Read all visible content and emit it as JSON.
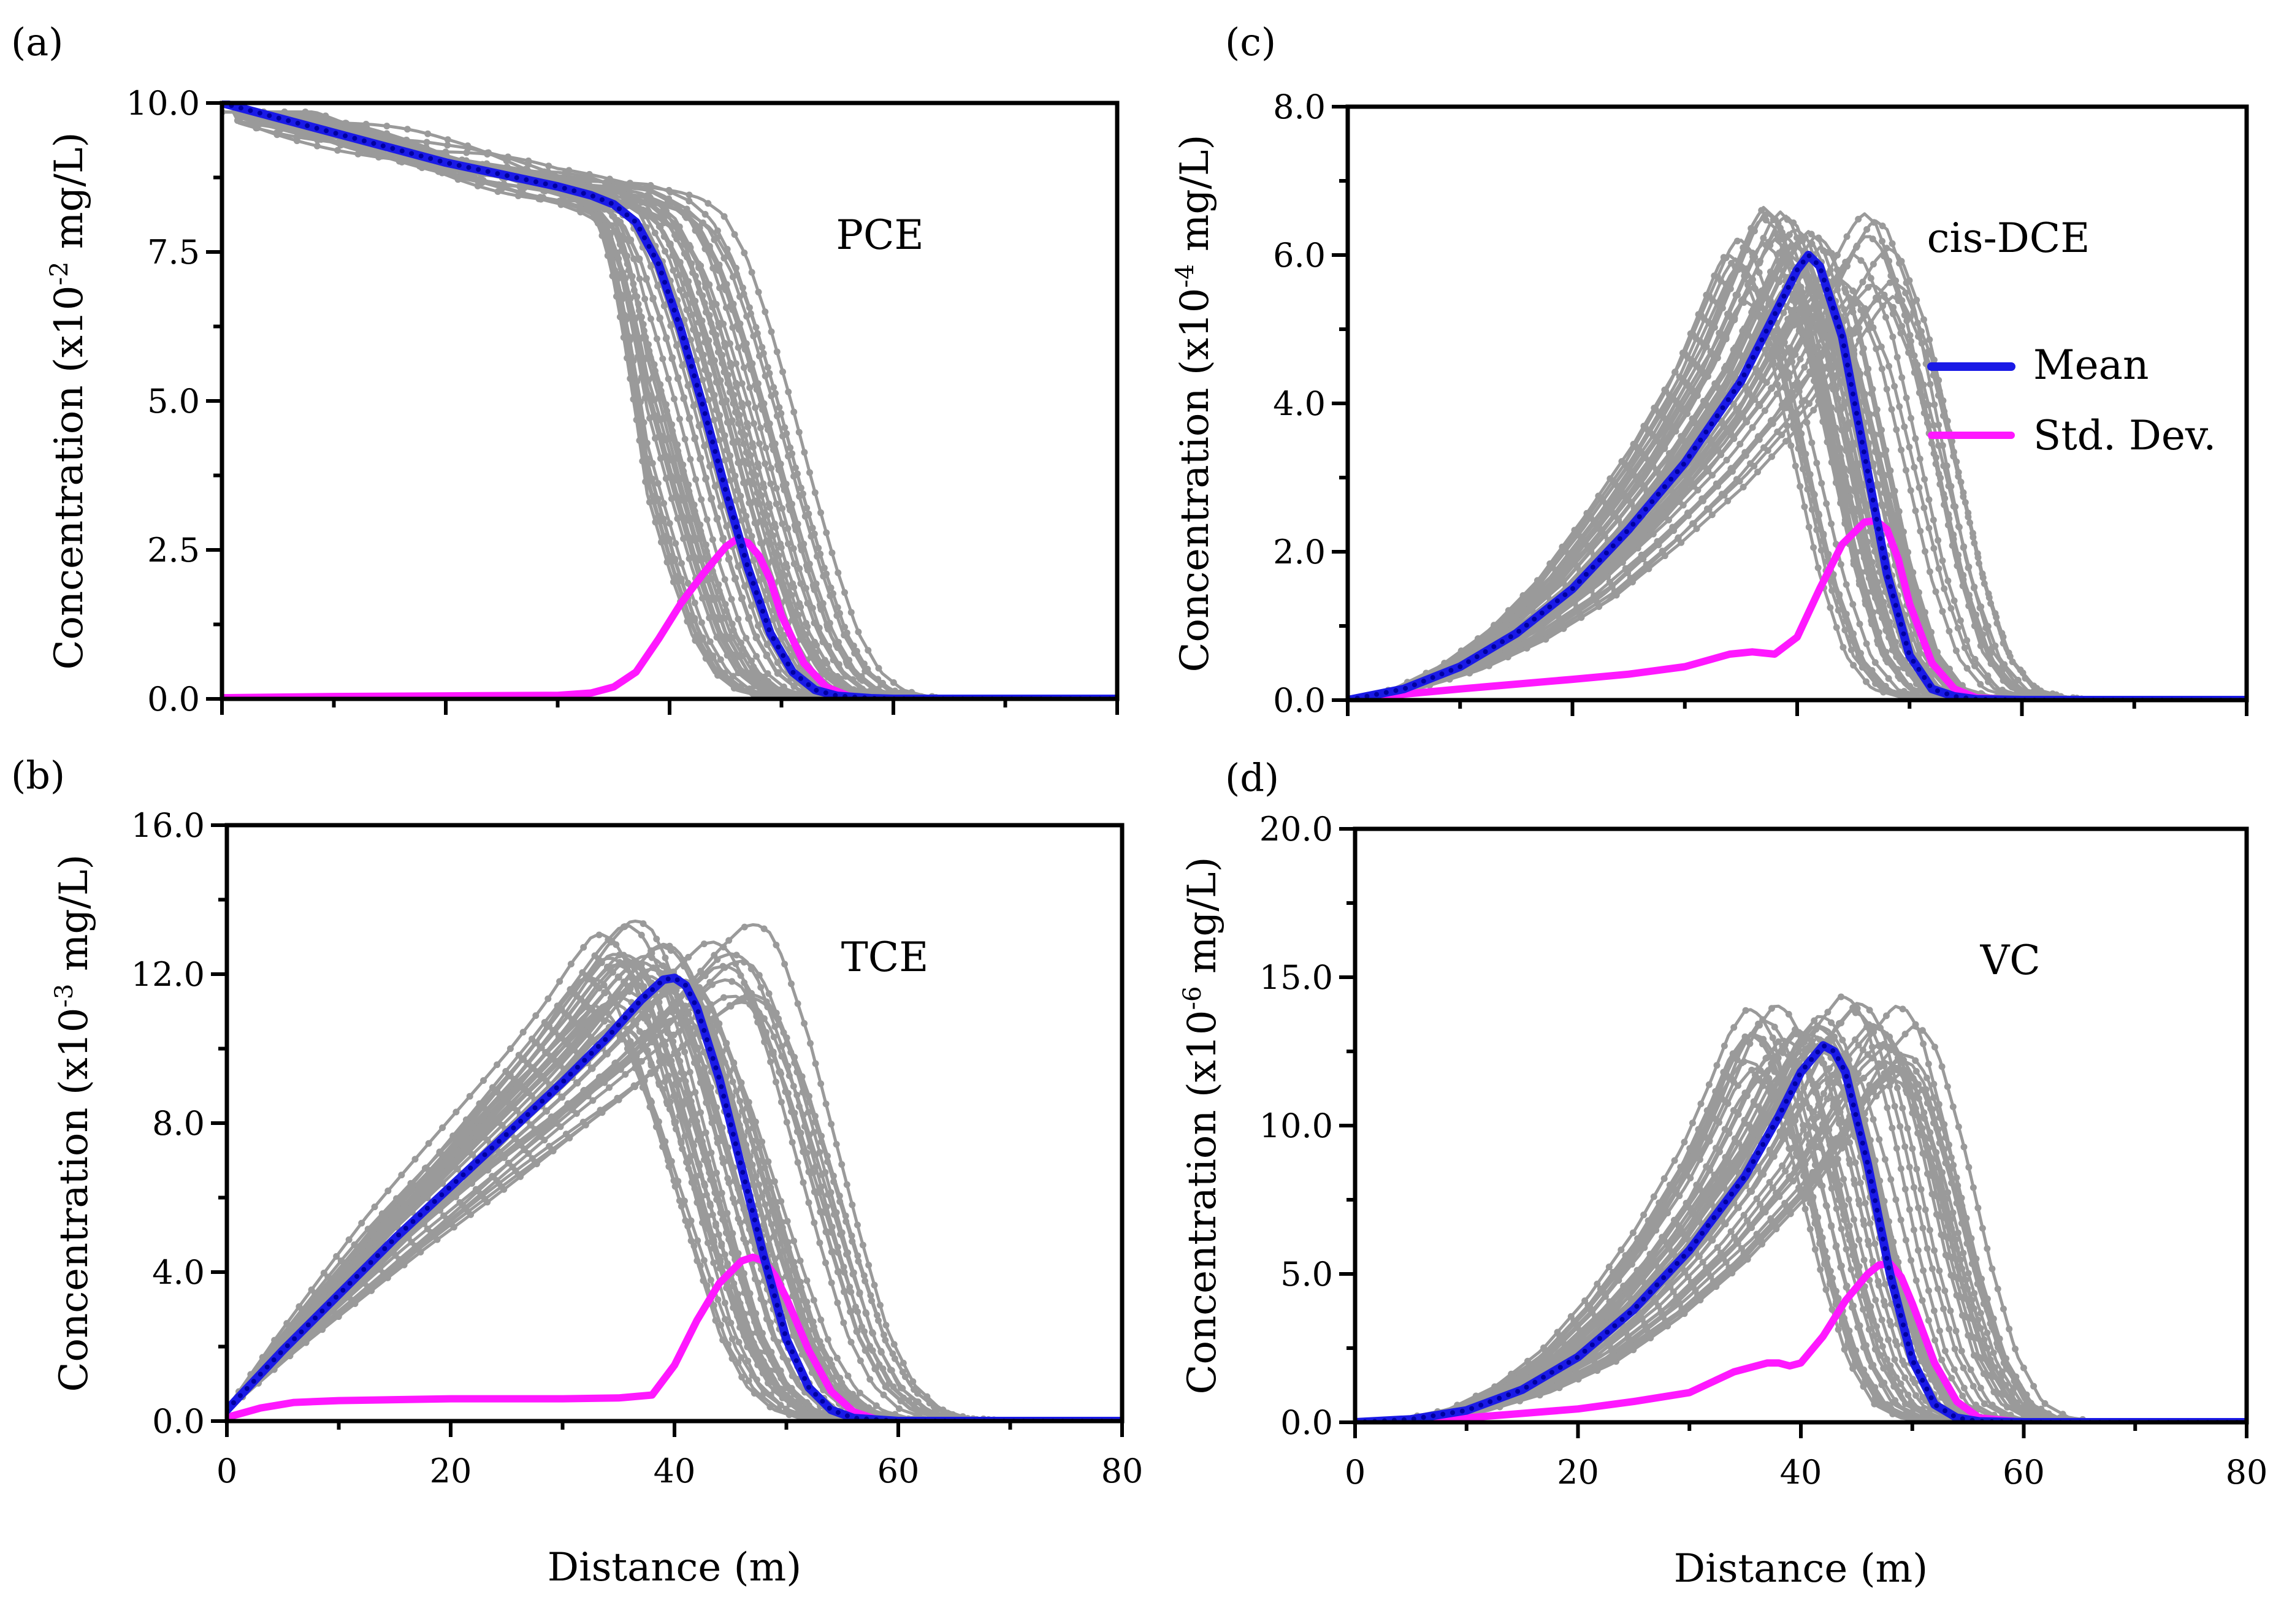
{
  "figure": {
    "legend": {
      "mean_label": "Mean",
      "std_label": "Std. Dev.",
      "mean_color": "#1a1ae6",
      "std_color": "#ff18ff",
      "realization_color": "#9a9a9a"
    }
  },
  "chart_data": [
    {
      "type": "line",
      "panel": "(a)",
      "chemical": "PCE",
      "ylabel": "Concentration (x10",
      "ylabel_exp": "-2",
      "ylabel_unit": " mg/L)",
      "xlabel": "",
      "xlim": [
        0,
        80
      ],
      "ylim": [
        0,
        10
      ],
      "xticks": [
        0,
        20,
        40,
        60,
        80
      ],
      "yticks": [
        0,
        2.5,
        5,
        7.5,
        10
      ],
      "ytick_labels": [
        "0.0",
        "2.5",
        "5.0",
        "7.5",
        "10.0"
      ],
      "series": [
        {
          "name": "Mean",
          "x": [
            0,
            5,
            10,
            15,
            20,
            25,
            30,
            33,
            35,
            37,
            39,
            41,
            43,
            45,
            47,
            49,
            51,
            53,
            55,
            58,
            60,
            80
          ],
          "y": [
            10,
            9.75,
            9.5,
            9.25,
            9.0,
            8.8,
            8.6,
            8.45,
            8.3,
            8.0,
            7.3,
            6.2,
            4.9,
            3.5,
            2.2,
            1.1,
            0.45,
            0.15,
            0.05,
            0.01,
            0,
            0
          ]
        },
        {
          "name": "Std. Dev.",
          "x": [
            0,
            10,
            20,
            30,
            33,
            35,
            37,
            39,
            41,
            43,
            45,
            46,
            47,
            48,
            49,
            50,
            52,
            54,
            56,
            58,
            60,
            80
          ],
          "y": [
            0.02,
            0.04,
            0.05,
            0.06,
            0.1,
            0.2,
            0.45,
            1.0,
            1.6,
            2.1,
            2.55,
            2.68,
            2.62,
            2.4,
            2.0,
            1.4,
            0.6,
            0.2,
            0.05,
            0.01,
            0,
            0
          ]
        }
      ]
    },
    {
      "type": "line",
      "panel": "(b)",
      "chemical": "TCE",
      "ylabel": "Concentration (x10",
      "ylabel_exp": "-3",
      "ylabel_unit": " mg/L)",
      "xlabel": "Distance (m)",
      "xlim": [
        0,
        80
      ],
      "ylim": [
        0,
        16
      ],
      "xticks": [
        0,
        20,
        40,
        60,
        80
      ],
      "xtick_labels": [
        "0",
        "20",
        "40",
        "60",
        "80"
      ],
      "yticks": [
        0,
        4,
        8,
        12,
        16
      ],
      "ytick_labels": [
        "0.0",
        "4.0",
        "8.0",
        "12.0",
        "16.0"
      ],
      "series": [
        {
          "name": "Mean",
          "x": [
            0,
            5,
            10,
            15,
            20,
            25,
            30,
            34,
            37,
            39,
            40,
            41,
            42,
            44,
            46,
            48,
            50,
            52,
            54,
            56,
            60,
            80
          ],
          "y": [
            0.3,
            1.9,
            3.4,
            4.9,
            6.3,
            7.7,
            9.1,
            10.3,
            11.3,
            11.85,
            11.9,
            11.7,
            11.1,
            9.2,
            6.8,
            4.4,
            2.2,
            0.9,
            0.3,
            0.08,
            0,
            0
          ]
        },
        {
          "name": "Std. Dev.",
          "x": [
            0,
            3,
            6,
            10,
            20,
            30,
            35,
            38,
            40,
            42,
            44,
            46,
            47,
            48,
            49,
            50,
            52,
            54,
            56,
            58,
            60,
            80
          ],
          "y": [
            0.1,
            0.35,
            0.5,
            0.55,
            0.6,
            0.6,
            0.62,
            0.7,
            1.5,
            2.7,
            3.7,
            4.3,
            4.4,
            4.3,
            3.9,
            3.3,
            1.9,
            0.8,
            0.25,
            0.05,
            0,
            0
          ]
        }
      ]
    },
    {
      "type": "line",
      "panel": "(c)",
      "chemical": "cis-DCE",
      "ylabel": "Concentration (x10",
      "ylabel_exp": "-4",
      "ylabel_unit": " mg/L)",
      "xlabel": "",
      "xlim": [
        0,
        80
      ],
      "ylim": [
        0,
        8
      ],
      "xticks": [
        0,
        20,
        40,
        60,
        80
      ],
      "yticks": [
        0,
        2,
        4,
        6,
        8
      ],
      "ytick_labels": [
        "0.0",
        "2.0",
        "4.0",
        "6.0",
        "8.0"
      ],
      "series": [
        {
          "name": "Mean",
          "x": [
            0,
            5,
            10,
            15,
            20,
            25,
            30,
            35,
            38,
            40,
            41,
            42,
            44,
            46,
            48,
            50,
            52,
            54,
            56,
            60,
            80
          ],
          "y": [
            0,
            0.15,
            0.45,
            0.9,
            1.5,
            2.3,
            3.2,
            4.3,
            5.2,
            5.8,
            6.0,
            5.85,
            4.9,
            3.3,
            1.7,
            0.6,
            0.15,
            0.05,
            0.01,
            0,
            0
          ]
        },
        {
          "name": "Std. Dev.",
          "x": [
            0,
            5,
            10,
            20,
            25,
            30,
            34,
            36,
            38,
            40,
            42,
            44,
            46,
            47,
            48,
            49,
            50,
            52,
            54,
            56,
            60,
            80
          ],
          "y": [
            0,
            0.08,
            0.15,
            0.28,
            0.35,
            0.45,
            0.62,
            0.65,
            0.62,
            0.85,
            1.5,
            2.1,
            2.4,
            2.42,
            2.3,
            1.9,
            1.3,
            0.5,
            0.15,
            0.03,
            0,
            0
          ]
        }
      ]
    },
    {
      "type": "line",
      "panel": "(d)",
      "chemical": "VC",
      "ylabel": "Concentration (x10",
      "ylabel_exp": "-6",
      "ylabel_unit": " mg/L)",
      "xlabel": "Distance (m)",
      "xlim": [
        0,
        80
      ],
      "ylim": [
        0,
        20
      ],
      "xticks": [
        0,
        20,
        40,
        60,
        80
      ],
      "xtick_labels": [
        "0",
        "20",
        "40",
        "60",
        "80"
      ],
      "yticks": [
        0,
        5,
        10,
        15,
        20
      ],
      "ytick_labels": [
        "0.0",
        "5.0",
        "10.0",
        "15.0",
        "20.0"
      ],
      "series": [
        {
          "name": "Mean",
          "x": [
            0,
            5,
            10,
            15,
            20,
            25,
            30,
            35,
            38,
            40,
            42,
            43,
            44,
            46,
            48,
            50,
            52,
            54,
            56,
            60,
            80
          ],
          "y": [
            0,
            0.1,
            0.4,
            1.1,
            2.2,
            3.8,
            5.8,
            8.3,
            10.3,
            11.8,
            12.7,
            12.5,
            11.8,
            8.7,
            5.0,
            2.1,
            0.6,
            0.15,
            0.03,
            0,
            0
          ]
        },
        {
          "name": "Std. Dev.",
          "x": [
            0,
            5,
            10,
            15,
            20,
            25,
            30,
            34,
            37,
            38,
            39,
            40,
            42,
            44,
            46,
            47,
            48,
            49,
            50,
            52,
            54,
            56,
            60,
            80
          ],
          "y": [
            0,
            0.05,
            0.15,
            0.3,
            0.45,
            0.7,
            1.0,
            1.7,
            2.0,
            2.0,
            1.9,
            2.0,
            2.9,
            4.1,
            5.0,
            5.3,
            5.35,
            4.9,
            4.0,
            2.0,
            0.7,
            0.15,
            0,
            0
          ]
        }
      ]
    }
  ]
}
